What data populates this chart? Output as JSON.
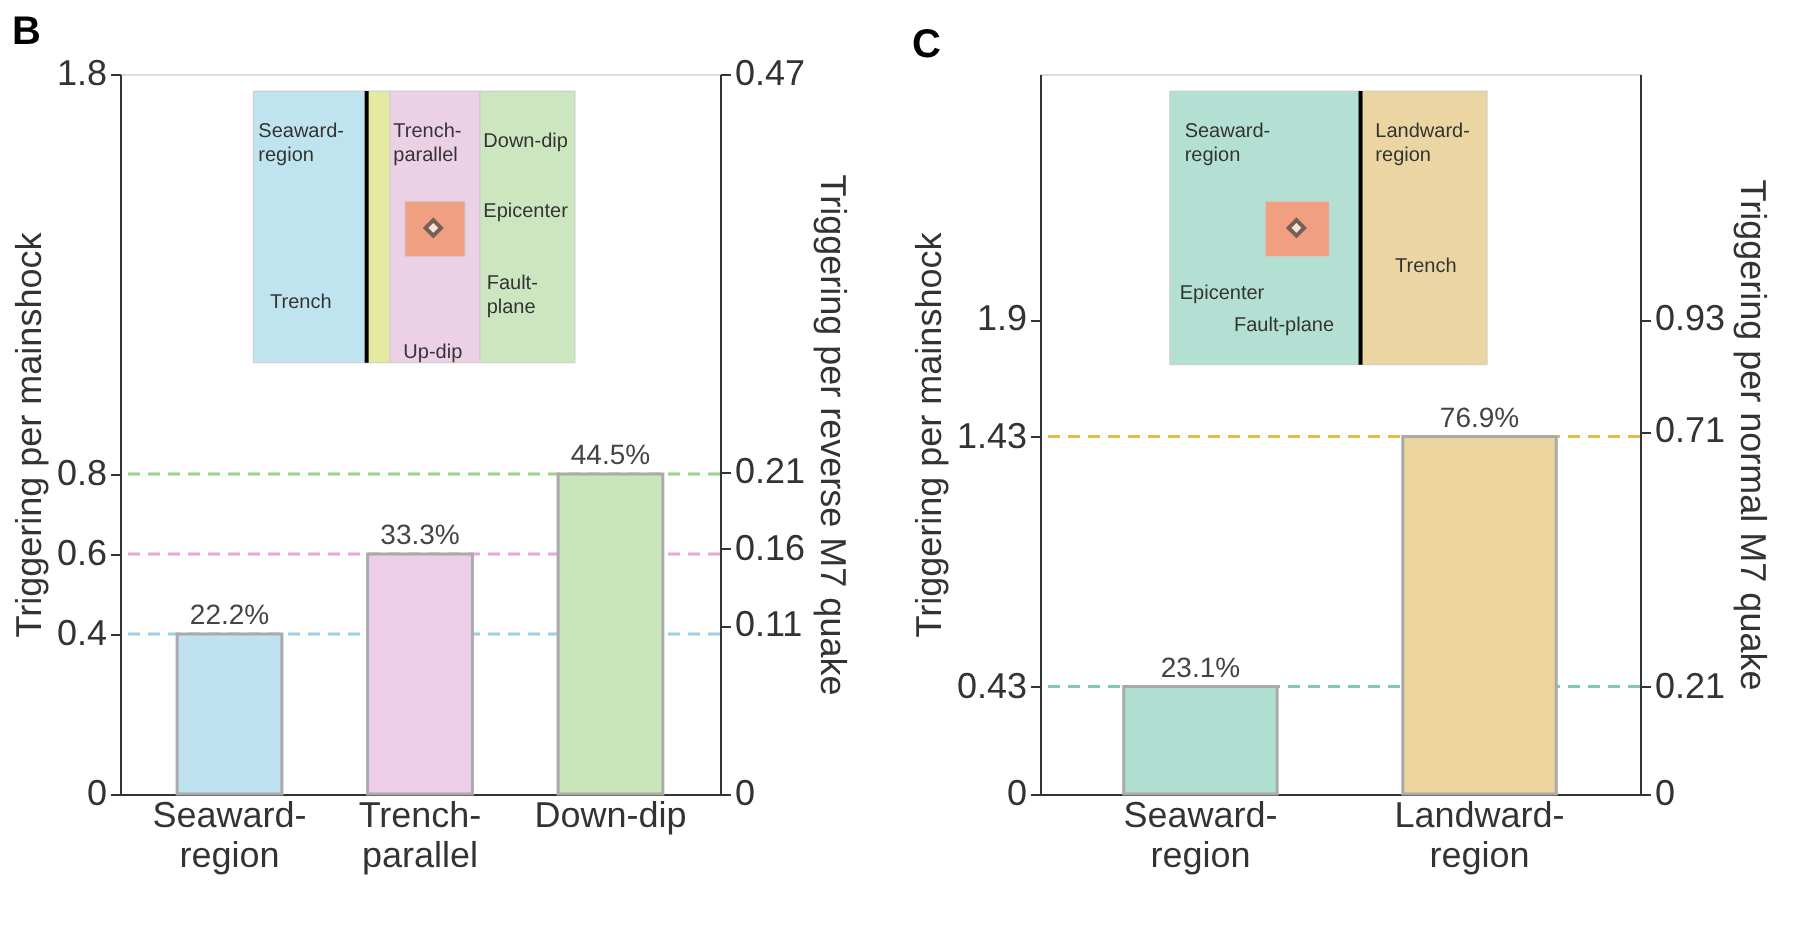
{
  "chart_data": [
    {
      "type": "bar",
      "title": "B",
      "categories": [
        "Seaward-\nregion",
        "Trench-\nparallel",
        "Down-dip"
      ],
      "values": [
        0.4,
        0.6,
        0.8
      ],
      "colors": [
        "#bfe2f1",
        "#edcde8",
        "#c8e5bb"
      ],
      "ylabel": "Triggering per mainshock",
      "y2label": "Triggering per reverse M7 quake",
      "ylim": [
        0,
        1.8
      ],
      "yticks": [
        0,
        0.4,
        0.6,
        0.8,
        1.8
      ],
      "y2lim": [
        0,
        0.47
      ],
      "y2ticks": [
        0,
        0.11,
        0.16,
        0.21,
        0.47
      ],
      "ref_lines": [
        {
          "axis": "y",
          "value": 0.4,
          "label": null,
          "color": "#9fcfe3",
          "line_style": "dashed"
        },
        {
          "axis": "y",
          "value": 0.6,
          "label": null,
          "color": "#e7a6dc",
          "line_style": "dashed"
        },
        {
          "axis": "y",
          "value": 0.8,
          "label": null,
          "color": "#9bd387",
          "line_style": "dashed"
        }
      ],
      "annotations": [
        "Seaward-\nregion",
        "Trench-\nparallel",
        "Down-dip",
        "Epicenter",
        "Fault-\nplane",
        "Trench",
        "Up-dip",
        {
          "text": "22.2%",
          "x": "Seaward-\nregion",
          "y": 0.4
        },
        {
          "text": "33.3%",
          "x": "Trench-\nparallel",
          "y": 0.6
        },
        {
          "text": "44.5%",
          "x": "Down-dip",
          "y": 0.8
        }
      ]
    },
    {
      "type": "bar",
      "title": "C",
      "categories": [
        "Seaward-\nregion",
        "Landward-\nregion"
      ],
      "values": [
        0.43,
        1.43
      ],
      "colors": [
        "#b0ded0",
        "#ebd49d"
      ],
      "ylabel": "Triggering per mainshock",
      "y2label": "Triggering per normal M7 quake",
      "ylim": [
        0,
        2.88
      ],
      "yticks": [
        0,
        0.43,
        1.43,
        1.9
      ],
      "y2lim": [
        0,
        1.41
      ],
      "y2ticks": [
        0,
        0.21,
        0.71,
        0.93
      ],
      "ref_lines": [
        {
          "axis": "y",
          "value": 0.43,
          "label": null,
          "color": "#7fc9b5",
          "line_style": "dashed"
        },
        {
          "axis": "y",
          "value": 1.43,
          "label": null,
          "color": "#e8b84a",
          "line_style": "dashed"
        }
      ],
      "annotations": [
        "Seaward-\nregion",
        "Landward-\nregion",
        "Epicenter",
        "Fault-plane",
        "Trench",
        {
          "text": "23.1%",
          "x": "Seaward-\nregion",
          "y": 0.43
        },
        {
          "text": "76.9%",
          "x": "Landward-\nregion",
          "y": 1.43
        }
      ]
    }
  ]
}
